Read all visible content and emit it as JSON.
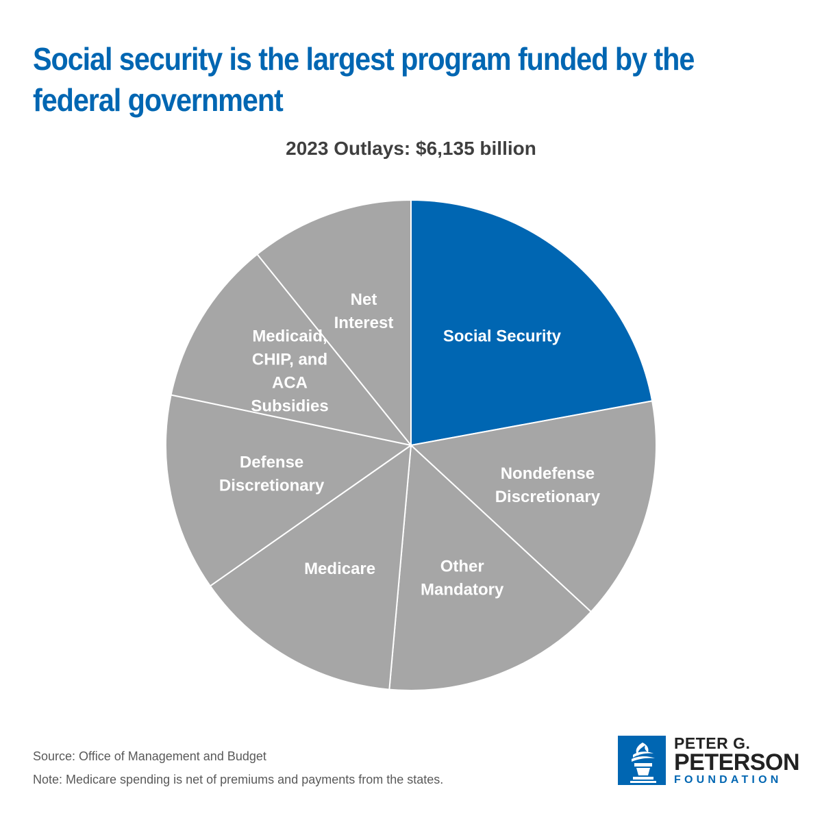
{
  "title": "Social security is the largest program funded by the federal government",
  "chart_data": {
    "type": "pie",
    "title": "Social security is the largest program funded by the federal government",
    "subtitle": "2023 Outlays: $6,135 billion",
    "total": 6135,
    "units": "billion dollars",
    "start_angle_deg": 0,
    "direction": "clockwise",
    "highlight_color": "#0066b2",
    "base_color": "#a6a6a6",
    "border_color": "#ffffff",
    "slices": [
      {
        "name": "social-security",
        "label": [
          "Social Security"
        ],
        "share": 0.2211,
        "color": "#0066b2"
      },
      {
        "name": "nondefense-discretionary",
        "label": [
          "Nondefense",
          "Discretionary"
        ],
        "share": 0.1477,
        "color": "#a6a6a6"
      },
      {
        "name": "other-mandatory",
        "label": [
          "Other",
          "Mandatory"
        ],
        "share": 0.1453,
        "color": "#a6a6a6"
      },
      {
        "name": "medicare",
        "label": [
          "Medicare"
        ],
        "share": 0.1386,
        "color": "#a6a6a6"
      },
      {
        "name": "defense-discretionary",
        "label": [
          "Defense",
          "Discretionary"
        ],
        "share": 0.1302,
        "color": "#a6a6a6"
      },
      {
        "name": "medicaid-chip-aca-subsidies",
        "label": [
          "Medicaid,",
          "CHIP, and",
          "ACA",
          "Subsidies"
        ],
        "share": 0.1092,
        "color": "#a6a6a6"
      },
      {
        "name": "net-interest",
        "label": [
          "Net",
          "Interest"
        ],
        "share": 0.1079,
        "color": "#a6a6a6"
      }
    ]
  },
  "footer": {
    "source": "Source: Office of Management and Budget",
    "note": "Note: Medicare spending is net of premiums and payments from the states."
  },
  "logo": {
    "line1": "PETER G.",
    "line2": "PETERSON",
    "line3": "FOUNDATION",
    "icon": "torch-icon",
    "color": "#0066b2"
  }
}
